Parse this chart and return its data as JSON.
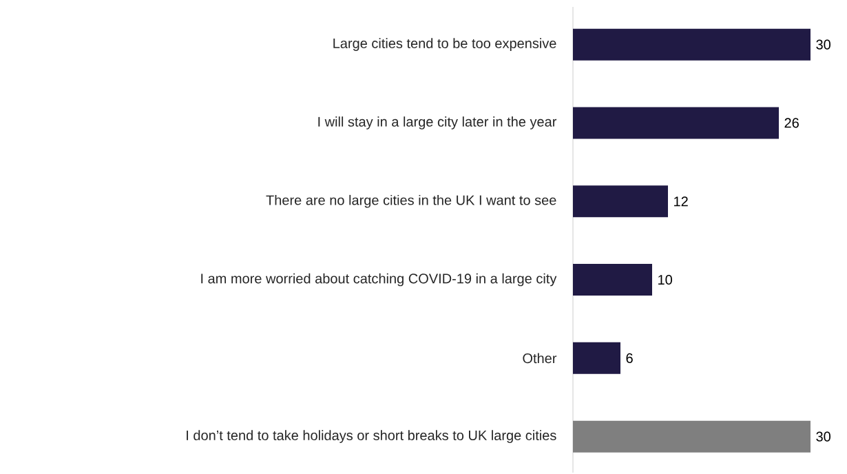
{
  "chart_data": {
    "type": "bar",
    "orientation": "horizontal",
    "data_labels": true,
    "categories": [
      "Large cities tend to be too expensive",
      "I will stay in a large city later in the year",
      "There are no large cities in the UK I want to see",
      "I am more worried about catching COVID-19 in a large city",
      "Other",
      "I don’t tend to take holidays or short breaks to UK large cities"
    ],
    "values": [
      30,
      26,
      12,
      10,
      6,
      30
    ],
    "colors": [
      "#201a44",
      "#201a44",
      "#201a44",
      "#201a44",
      "#201a44",
      "#7f7f7f"
    ]
  }
}
